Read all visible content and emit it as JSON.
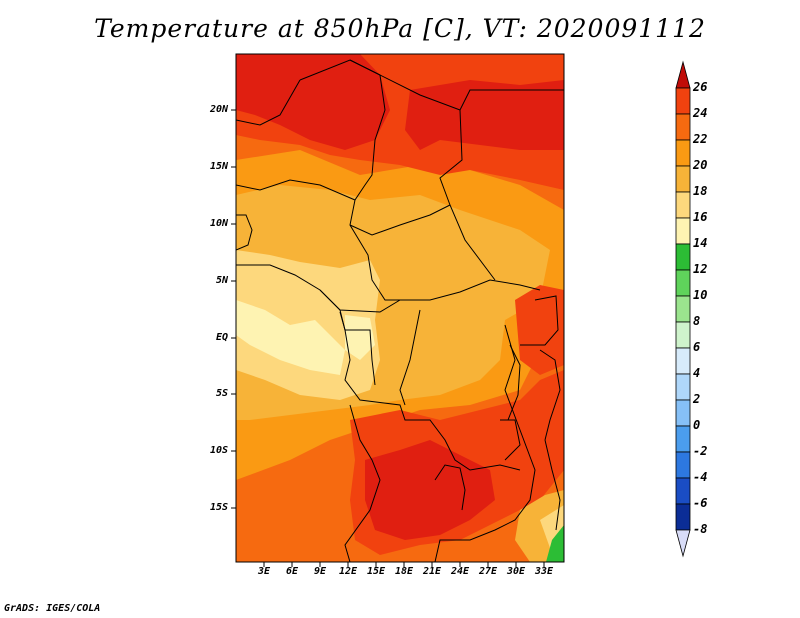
{
  "title": "Temperature at 850hPa [C], VT: 2020091112",
  "credit": "GrADS: IGES/COLA",
  "lat_ticks": [
    "20N",
    "15N",
    "10N",
    "5N",
    "EQ",
    "5S",
    "10S",
    "15S"
  ],
  "lon_ticks": [
    "3E",
    "6E",
    "9E",
    "12E",
    "15E",
    "18E",
    "21E",
    "24E",
    "27E",
    "30E",
    "33E"
  ],
  "colorbar": {
    "labels": [
      "26",
      "24",
      "22",
      "20",
      "18",
      "16",
      "14",
      "12",
      "10",
      "8",
      "6",
      "4",
      "2",
      "0",
      "-2",
      "-4",
      "-6",
      "-8"
    ],
    "colors": [
      "#e01f11",
      "#f1420f",
      "#f66a10",
      "#fa9a13",
      "#f7b338",
      "#fdd87d",
      "#fef3b2",
      "#2cbd35",
      "#5fd35b",
      "#9be48e",
      "#cff3cc",
      "#d7ebfb",
      "#afd7fa",
      "#86c0f7",
      "#4b9ded",
      "#2d78e0",
      "#1a4dc4",
      "#0b2d96",
      "#0a1466"
    ],
    "top_color": "#c00c08",
    "bottom_color": "#d8dcf7"
  },
  "field_colors": {
    "c26": "#e01f11",
    "c24": "#f1420f",
    "c22": "#f66a10",
    "c20": "#fa9a13",
    "c18": "#f7b338",
    "c16": "#fdd87d",
    "c14": "#fef3b2",
    "c12": "#2cbd35"
  }
}
